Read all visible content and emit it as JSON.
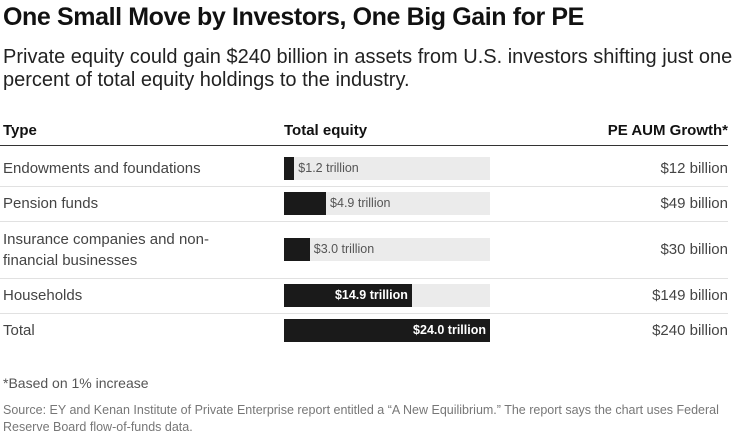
{
  "header": {
    "title": "One Small Move by Investors, One Big Gain for PE",
    "subtitle": "Private equity could gain $240 billion in assets from U.S. investors shifting just one percent of total equity holdings to the industry."
  },
  "columns": {
    "type": "Type",
    "equity": "Total equity",
    "growth": "PE AUM Growth*"
  },
  "chart_data": {
    "type": "bar",
    "orientation": "horizontal",
    "scale_max": 24.0,
    "unit": "trillion",
    "categories": [
      "Endowments and foundations",
      "Pension funds",
      "Insurance companies and non-financial businesses",
      "Households",
      "Total"
    ],
    "values": [
      1.2,
      4.9,
      3.0,
      14.9,
      24.0
    ],
    "value_labels": [
      "$1.2 trillion",
      "$4.9 trillion",
      "$3.0 trillion",
      "$14.9 trillion",
      "$24.0 trillion"
    ],
    "growth_labels": [
      "$12 billion",
      "$49 billion",
      "$30 billion",
      "$149 billion",
      "$240 billion"
    ],
    "colors": {
      "bar": "#1a1a1a",
      "track": "#ebebeb"
    }
  },
  "footer": {
    "note": "*Based on 1% increase",
    "source": "Source: EY and Kenan Institute of Private Enterprise report entitled a “A New Equilibrium.” The report says the chart uses Federal Reserve Board flow-of-funds data."
  }
}
